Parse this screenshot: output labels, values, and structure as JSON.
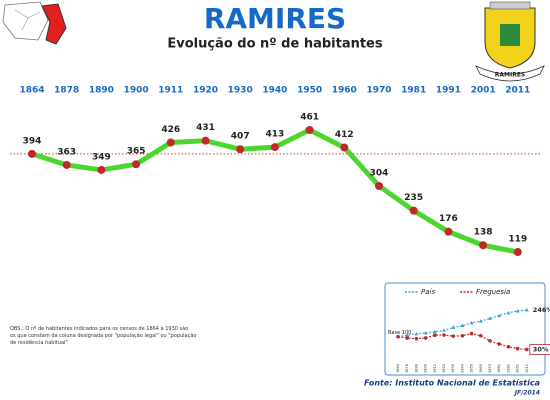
{
  "title": "RAMIRES",
  "subtitle": "Evolução do nº de habitantes",
  "emblem_text": "RAMIRES",
  "note": "OBS.: O nº de habitantes indicados para os censos de 1864 a 1930 são os que constam da coluna designada por \"população legal\" ou \"população de residência habitual\"",
  "source": "Fonte: Instituto Nacional de Estatística",
  "credit": "JF/2014",
  "chart_data": [
    {
      "type": "line",
      "categories": [
        "1864",
        "1878",
        "1890",
        "1900",
        "1911",
        "1920",
        "1930",
        "1940",
        "1950",
        "1960",
        "1970",
        "1981",
        "1991",
        "2001",
        "2011"
      ],
      "values": [
        394,
        363,
        349,
        365,
        426,
        431,
        407,
        413,
        461,
        412,
        304,
        235,
        176,
        138,
        119
      ],
      "color": "#4cd62e",
      "marker_color": "#c0282a",
      "reference_line": 394,
      "reference_color": "#e03030",
      "ylim": [
        100,
        480
      ]
    },
    {
      "type": "line",
      "categories": [
        "1864",
        "1878",
        "1890",
        "1900",
        "1911",
        "1920",
        "1930",
        "1940",
        "1950",
        "1960",
        "1970",
        "1981",
        "1991",
        "2001",
        "2011"
      ],
      "series": [
        {
          "name": "País",
          "color": "#3fa2e0",
          "marker": "triangle",
          "values": [
            100,
            108,
            115,
            120,
            127,
            135,
            150,
            160,
            175,
            185,
            200,
            215,
            230,
            240,
            246
          ],
          "end_label": "246%"
        },
        {
          "name": "Freguesia",
          "color": "#c0282a",
          "marker": "circle",
          "values": [
            100,
            92,
            89,
            93,
            108,
            109,
            103,
            105,
            117,
            105,
            77,
            60,
            45,
            35,
            30
          ],
          "end_label": "30%"
        }
      ],
      "annotation": "Base 100",
      "ylim": [
        0,
        300
      ]
    }
  ]
}
